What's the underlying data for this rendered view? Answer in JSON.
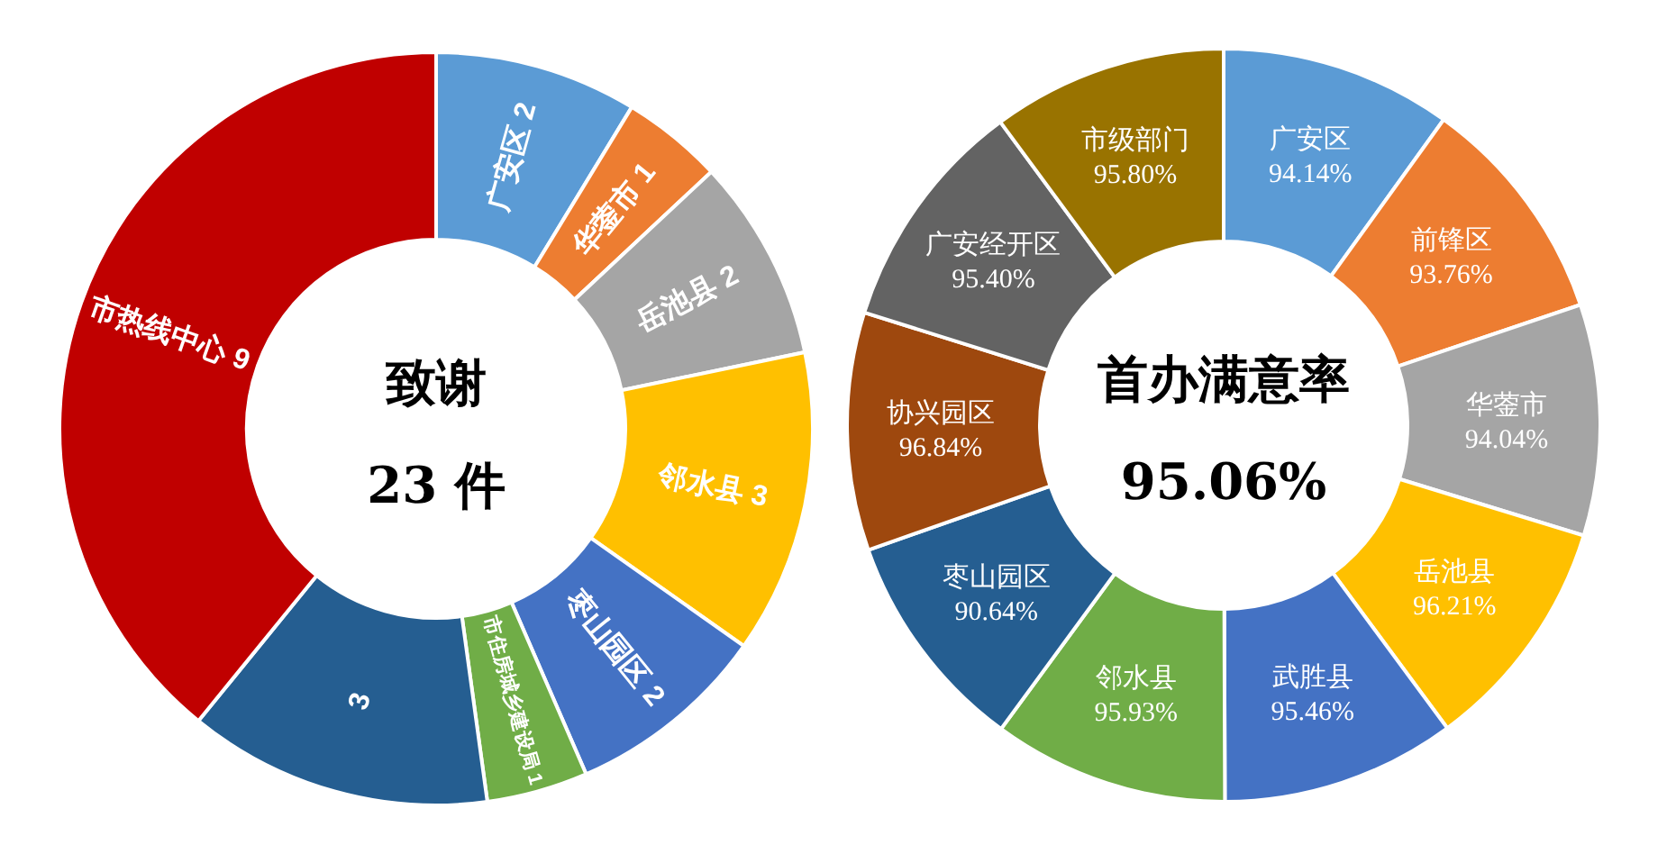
{
  "chart_data": [
    {
      "type": "donut",
      "title": "致谢",
      "subtitle": "23 件",
      "categories": [
        "广安区",
        "华蓥市",
        "岳池县",
        "邻水县",
        "枣山园区",
        "市住房城乡建设局",
        null,
        "市热线中心"
      ],
      "values": [
        2,
        1,
        2,
        3,
        2,
        1,
        3,
        9
      ],
      "colors": [
        "#5b9bd5",
        "#ed7d31",
        "#a5a5a5",
        "#ffc000",
        "#4472c4",
        "#70ad47",
        "#255e91",
        "#c00000"
      ],
      "data_labels": true
    },
    {
      "type": "donut",
      "title": "首办满意率",
      "subtitle": "95.06%",
      "categories": [
        "广安区",
        "前锋区",
        "华蓥市",
        "岳池县",
        "武胜县",
        "邻水县",
        "枣山园区",
        "协兴园区",
        "广安经开区",
        "市级部门"
      ],
      "values": [
        94.14,
        93.76,
        94.04,
        96.21,
        95.46,
        95.93,
        90.64,
        96.84,
        95.4,
        95.8
      ],
      "colors": [
        "#5b9bd5",
        "#ed7d31",
        "#a5a5a5",
        "#ffc000",
        "#4472c4",
        "#70ad47",
        "#255e91",
        "#9e480e",
        "#636363",
        "#997300"
      ],
      "value_labels": [
        "94.14%",
        "93.76%",
        "94.04%",
        "96.21%",
        "95.46%",
        "95.93%",
        "90.64%",
        "96.84%",
        "95.40%",
        "95.80%"
      ]
    }
  ]
}
